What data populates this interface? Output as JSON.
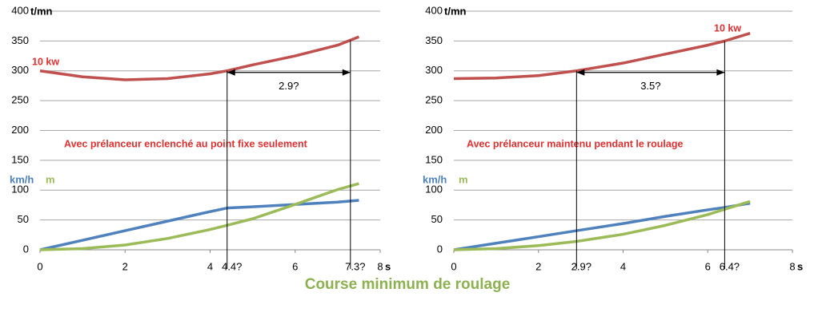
{
  "caption": "Course minimum de roulage",
  "chart_data": [
    {
      "type": "line",
      "subtitle": "Avec prélanceur enclenché au point fixe seulement",
      "y_unit": "t/mn",
      "x_unit": "s",
      "power_label": "10 kw",
      "xlim": [
        0,
        8
      ],
      "xticks": [
        0,
        2,
        4,
        6,
        8
      ],
      "ylim": [
        0,
        400
      ],
      "yticks": [
        0,
        50,
        100,
        150,
        200,
        250,
        300,
        350,
        400
      ],
      "grid": true,
      "x": [
        0,
        1,
        2,
        3,
        4,
        4.4,
        5,
        6,
        7,
        7.5
      ],
      "series": [
        {
          "color": "#c0504d",
          "values": [
            300,
            290,
            285,
            287,
            295,
            300,
            310,
            325,
            343,
            357
          ]
        },
        {
          "name": "km/h",
          "color": "#4f81bd",
          "values": [
            0,
            16,
            32,
            48,
            64,
            70,
            72,
            76,
            80,
            83
          ]
        },
        {
          "name": "m",
          "color": "#9bbb59",
          "values": [
            0,
            2,
            8,
            19,
            34,
            41,
            52,
            76,
            101,
            111
          ]
        }
      ],
      "markers": [
        {
          "value": 4.4,
          "label": "4.4?"
        },
        {
          "value": 7.3,
          "label": "7.3?"
        }
      ],
      "span_label": "2.9?"
    },
    {
      "type": "line",
      "subtitle": "Avec prélanceur maintenu pendant le roulage",
      "y_unit": "t/mn",
      "x_unit": "s",
      "power_label": "10 kw",
      "xlim": [
        0,
        8
      ],
      "xticks": [
        0,
        2,
        4,
        6,
        8
      ],
      "ylim": [
        0,
        400
      ],
      "yticks": [
        0,
        50,
        100,
        150,
        200,
        250,
        300,
        350,
        400
      ],
      "grid": true,
      "x": [
        0,
        1,
        2,
        2.9,
        4,
        5,
        6,
        6.4,
        7
      ],
      "series": [
        {
          "color": "#c0504d",
          "values": [
            287,
            288,
            292,
            300,
            313,
            328,
            343,
            350,
            363
          ]
        },
        {
          "name": "km/h",
          "color": "#4f81bd",
          "values": [
            0,
            11,
            22,
            32,
            44,
            56,
            67,
            71,
            78
          ]
        },
        {
          "name": "m",
          "color": "#9bbb59",
          "values": [
            0,
            2,
            7,
            14,
            26,
            41,
            59,
            68,
            81
          ]
        }
      ],
      "markers": [
        {
          "value": 2.9,
          "label": "2.9?"
        },
        {
          "value": 6.4,
          "label": "6.4?"
        }
      ],
      "span_label": "3.5?"
    }
  ]
}
